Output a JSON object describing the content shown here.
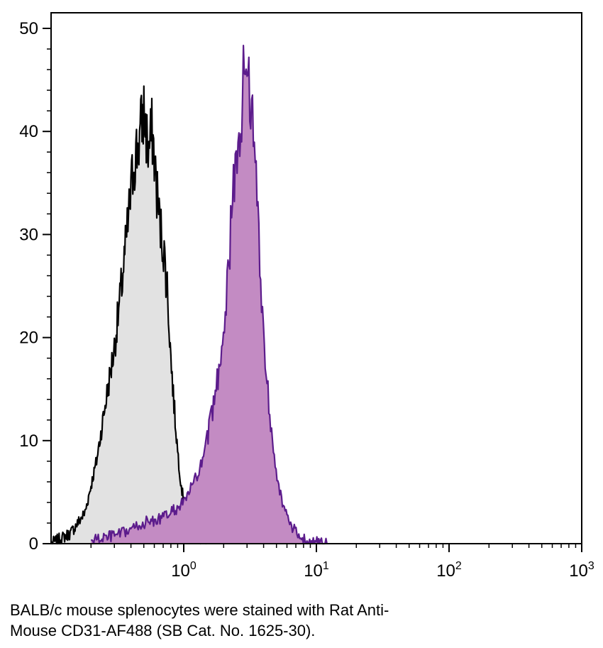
{
  "chart_data": {
    "type": "area",
    "title": "",
    "xlabel": "",
    "ylabel": "",
    "xscale": "log",
    "xlim": [
      0.1,
      1000
    ],
    "ylim": [
      0,
      50
    ],
    "grid": false,
    "y_ticks": [
      0,
      10,
      20,
      30,
      40,
      50
    ],
    "x_ticks": [
      {
        "value": 1,
        "base": "10",
        "exp": "0"
      },
      {
        "value": 10,
        "base": "10",
        "exp": "1"
      },
      {
        "value": 100,
        "base": "10",
        "exp": "2"
      },
      {
        "value": 1000,
        "base": "10",
        "exp": "3"
      }
    ],
    "series": [
      {
        "fill": "#e2e2e2",
        "line": "#000000",
        "x": [
          0.1,
          0.14,
          0.18,
          0.22,
          0.26,
          0.3,
          0.34,
          0.38,
          0.42,
          0.46,
          0.5,
          0.54,
          0.58,
          0.62,
          0.66,
          0.7,
          0.75,
          0.8,
          0.85,
          0.9,
          0.95,
          1.0,
          1.05,
          1.1,
          1.2,
          1.3,
          1.45,
          1.6
        ],
        "y": [
          0,
          1,
          3,
          8,
          14,
          19,
          25,
          31,
          37,
          39,
          42,
          38,
          40,
          35,
          31,
          29,
          25,
          18,
          13,
          9,
          6,
          4,
          3,
          2,
          1,
          0.5,
          0.2,
          0
        ]
      },
      {
        "fill": "#c38bc3",
        "line": "#5c1c8c",
        "x": [
          0.2,
          0.35,
          0.5,
          0.7,
          0.9,
          1.0,
          1.2,
          1.4,
          1.6,
          1.8,
          2.0,
          2.2,
          2.4,
          2.6,
          2.8,
          3.0,
          3.2,
          3.5,
          3.8,
          4.1,
          4.5,
          5.0,
          5.5,
          6.0,
          7.0,
          8.0,
          9.0,
          10.0,
          12.0
        ],
        "y": [
          0.3,
          1,
          2,
          2.5,
          3.5,
          4,
          6,
          8,
          12,
          16,
          21,
          28,
          35,
          39,
          44,
          48,
          43,
          36,
          26,
          18,
          12,
          7,
          4,
          2.5,
          1,
          0.5,
          0.2,
          0.1,
          0
        ]
      }
    ]
  },
  "caption": {
    "line1": "BALB/c mouse splenocytes were stained with Rat Anti-",
    "line2": "Mouse CD31-AF488 (SB Cat. No. 1625-30)."
  }
}
